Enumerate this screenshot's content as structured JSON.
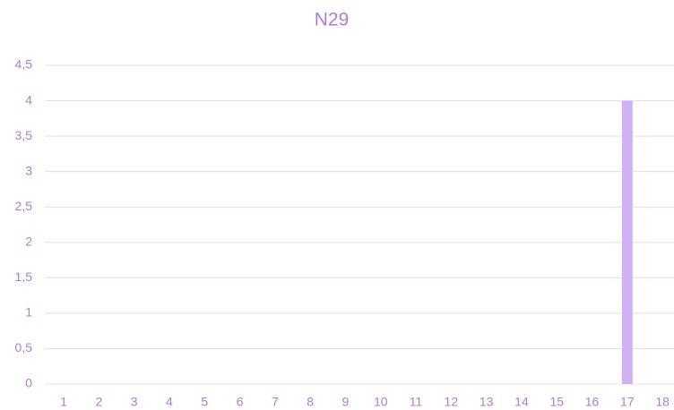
{
  "chart_data": {
    "type": "bar",
    "title": "N29",
    "categories": [
      "1",
      "2",
      "3",
      "4",
      "5",
      "6",
      "7",
      "8",
      "9",
      "10",
      "11",
      "12",
      "13",
      "14",
      "15",
      "16",
      "17",
      "18"
    ],
    "values": [
      0,
      0,
      0,
      0,
      0,
      0,
      0,
      0,
      0,
      0,
      0,
      0,
      0,
      0,
      0,
      0,
      4,
      0
    ],
    "color": "#cfb2f6",
    "ylim": [
      0,
      4.5
    ],
    "yticks": [
      0,
      {
        "value": 0.5,
        "label": "0,5"
      },
      1,
      {
        "value": 1.5,
        "label": "1,5"
      },
      2,
      {
        "value": 2.5,
        "label": "2,5"
      },
      3,
      {
        "value": 3.5,
        "label": "3,5"
      },
      4,
      {
        "value": 4.5,
        "label": "4,5"
      }
    ],
    "grid": true
  }
}
